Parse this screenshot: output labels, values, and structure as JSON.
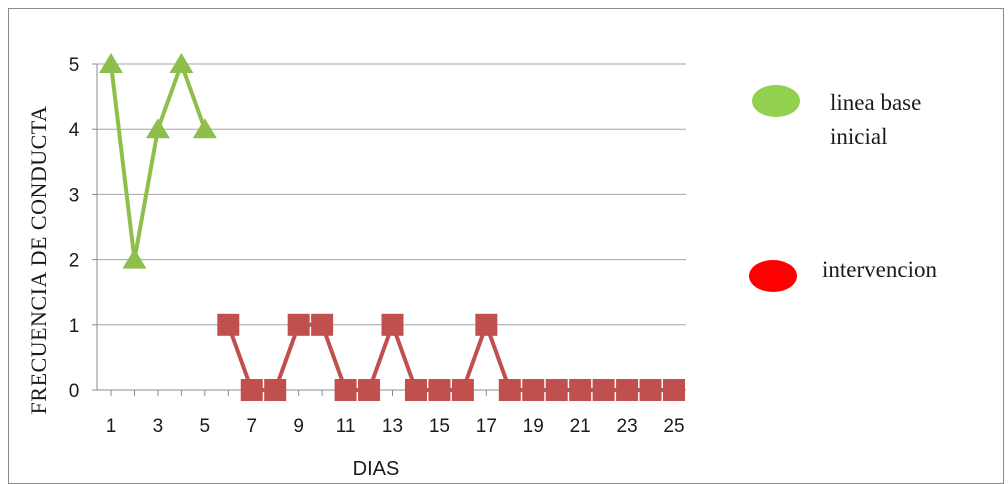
{
  "chart_data": {
    "type": "line",
    "title": "",
    "xlabel": "DIAS",
    "ylabel": "FRECUENCIA  DE CONDUCTA",
    "xlim": [
      1,
      25
    ],
    "ylim": [
      0,
      5
    ],
    "x_ticks": [
      "1",
      "3",
      "5",
      "7",
      "9",
      "11",
      "13",
      "15",
      "17",
      "19",
      "21",
      "23",
      "25"
    ],
    "y_ticks": [
      "0",
      "1",
      "2",
      "3",
      "4",
      "5"
    ],
    "grid": "horizontal",
    "legend_position": "right",
    "series": [
      {
        "name": "linea base inicial",
        "legend_lines": [
          "linea base",
          "inicial"
        ],
        "legend_color": "#92d050",
        "color": "#8fbf4a",
        "marker": "triangle",
        "x": [
          1,
          2,
          3,
          4,
          5
        ],
        "values": [
          5,
          2,
          4,
          5,
          4
        ]
      },
      {
        "name": "intervencion",
        "legend_lines": [
          "intervencion"
        ],
        "legend_color": "#ff0000",
        "color": "#c0504d",
        "marker": "square",
        "x": [
          6,
          7,
          8,
          9,
          10,
          11,
          12,
          13,
          14,
          15,
          16,
          17,
          18,
          19,
          20,
          21,
          22,
          23,
          24,
          25
        ],
        "values": [
          1,
          0,
          0,
          1,
          1,
          0,
          0,
          1,
          0,
          0,
          0,
          1,
          0,
          0,
          0,
          0,
          0,
          0,
          0,
          0
        ]
      }
    ]
  }
}
